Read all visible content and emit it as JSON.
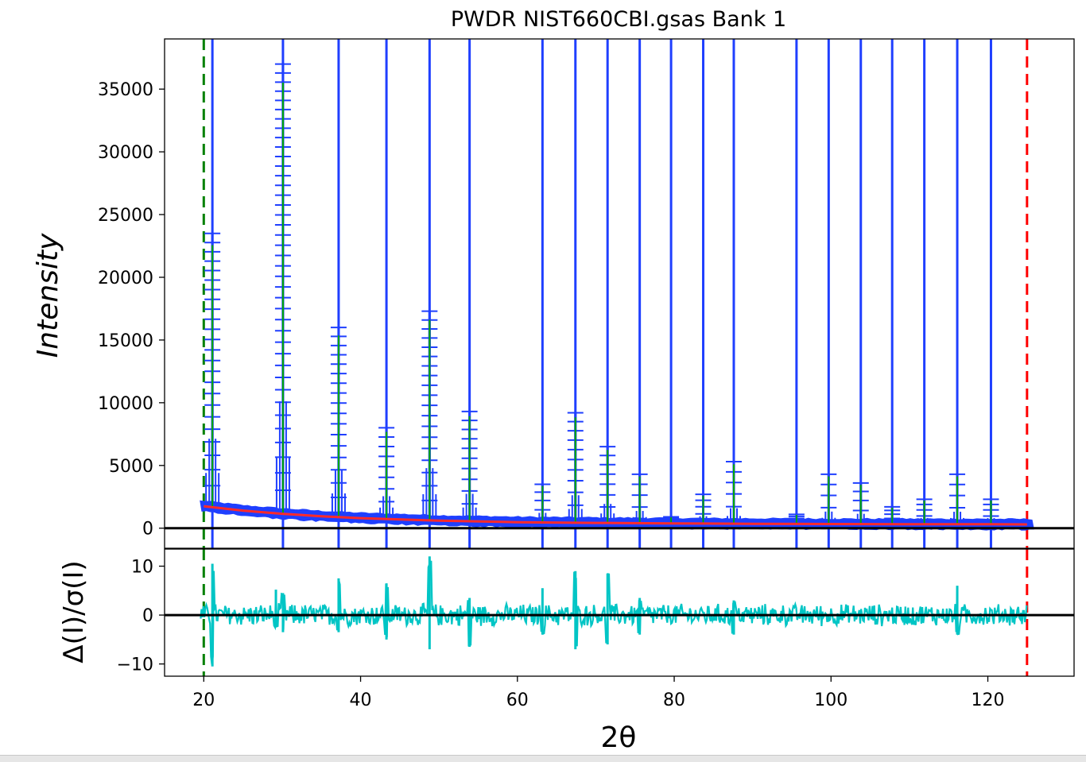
{
  "chart_data": [
    {
      "type": "scatter",
      "title": "PWDR NIST660CBI.gsas Bank 1",
      "xlabel": "2θ",
      "ylabel": "Intensity",
      "xlim": [
        15,
        131
      ],
      "ylim": [
        -1600,
        39000
      ],
      "yticks": [
        0,
        5000,
        10000,
        15000,
        20000,
        25000,
        30000,
        35000
      ],
      "xticks": [
        20,
        40,
        60,
        80,
        100,
        120
      ],
      "grid": false,
      "range_limits": {
        "lower": {
          "x": 20,
          "color": "#008000",
          "style": "dashed"
        },
        "upper": {
          "x": 125,
          "color": "#ff0000",
          "style": "dashed"
        }
      },
      "reflection_positions": [
        21.1,
        30.1,
        37.2,
        43.3,
        48.8,
        53.9,
        63.2,
        67.4,
        71.5,
        75.6,
        79.6,
        83.7,
        87.6,
        95.6,
        99.7,
        103.8,
        107.8,
        111.9,
        116.1,
        120.4
      ],
      "series": [
        {
          "role": "observed",
          "color": "#1f3fff",
          "marker": "+",
          "peaks": [
            {
              "x": 21.1,
              "y": 23500
            },
            {
              "x": 30.1,
              "y": 37000
            },
            {
              "x": 37.2,
              "y": 16000
            },
            {
              "x": 43.3,
              "y": 8000
            },
            {
              "x": 48.8,
              "y": 17300
            },
            {
              "x": 53.9,
              "y": 9300
            },
            {
              "x": 63.2,
              "y": 3500
            },
            {
              "x": 67.4,
              "y": 9200
            },
            {
              "x": 71.5,
              "y": 6500
            },
            {
              "x": 75.6,
              "y": 4300
            },
            {
              "x": 79.6,
              "y": 900
            },
            {
              "x": 83.7,
              "y": 2700
            },
            {
              "x": 87.6,
              "y": 5300
            },
            {
              "x": 95.6,
              "y": 1100
            },
            {
              "x": 99.7,
              "y": 4300
            },
            {
              "x": 103.8,
              "y": 3600
            },
            {
              "x": 107.8,
              "y": 1700
            },
            {
              "x": 111.9,
              "y": 2300
            },
            {
              "x": 116.1,
              "y": 4300
            },
            {
              "x": 120.4,
              "y": 2300
            }
          ]
        },
        {
          "role": "calculated",
          "color": "#00aa00"
        },
        {
          "role": "background",
          "color": "#ff2a2a",
          "x": [
            20,
            25,
            30,
            35,
            40,
            50,
            60,
            70,
            80,
            90,
            100,
            110,
            120,
            125
          ],
          "y": [
            1750,
            1400,
            1150,
            950,
            800,
            600,
            480,
            420,
            380,
            350,
            330,
            320,
            310,
            300
          ]
        }
      ]
    },
    {
      "type": "line",
      "ylabel": "Δ(I)/σ(I)",
      "xlabel": "2θ",
      "xlim": [
        15,
        131
      ],
      "ylim": [
        -12.5,
        13.5
      ],
      "yticks": [
        -10,
        0,
        10
      ],
      "xticks": [
        20,
        40,
        60,
        80,
        100,
        120
      ],
      "color": "#00c5c5",
      "noise_band": 2.5,
      "spikes": [
        {
          "x": 21.1,
          "hi": 10.5,
          "lo": -10.5
        },
        {
          "x": 29.2,
          "hi": 5.2,
          "lo": -2.5
        },
        {
          "x": 30.1,
          "hi": 4.5,
          "lo": -3.5
        },
        {
          "x": 37.2,
          "hi": 7.5,
          "lo": -3.5
        },
        {
          "x": 43.3,
          "hi": 6.5,
          "lo": -5
        },
        {
          "x": 48.8,
          "hi": 12,
          "lo": -7
        },
        {
          "x": 53.9,
          "hi": 3.5,
          "lo": -6.5
        },
        {
          "x": 63.2,
          "hi": 5.5,
          "lo": -4
        },
        {
          "x": 67.4,
          "hi": 9,
          "lo": -7
        },
        {
          "x": 71.5,
          "hi": 8.5,
          "lo": -6
        },
        {
          "x": 75.6,
          "hi": 3.5,
          "lo": -4
        },
        {
          "x": 87.6,
          "hi": 3,
          "lo": -4
        },
        {
          "x": 116.1,
          "hi": 6,
          "lo": -4
        }
      ]
    }
  ]
}
